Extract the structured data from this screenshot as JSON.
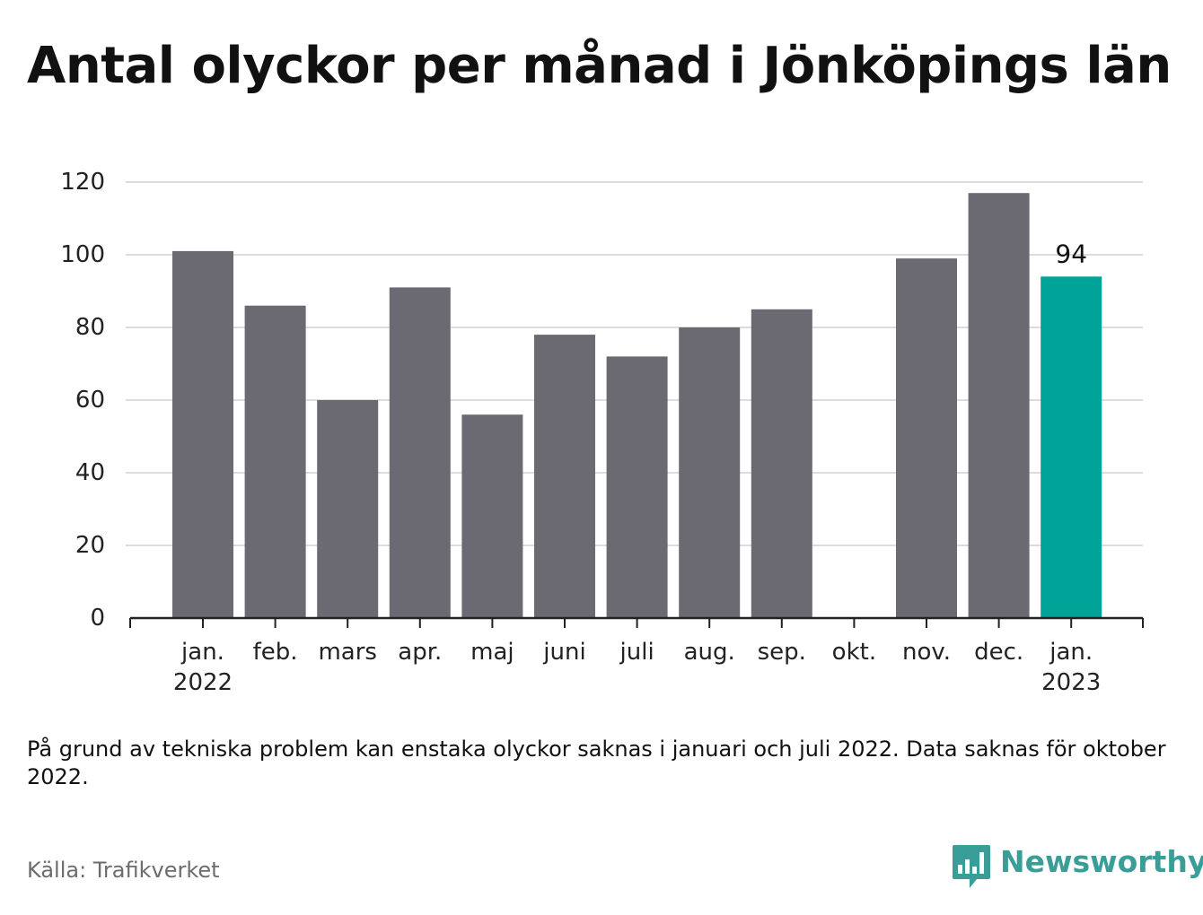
{
  "title": "Antal olyckor per månad i Jönköpings län",
  "note": "På grund av tekniska problem kan enstaka olyckor saknas i januari och juli 2022. Data saknas för oktober 2022.",
  "source": "Källa: Trafikverket",
  "brand": {
    "name": "Newsworthy",
    "icon": "bar-chart-speech-bubble-icon",
    "color": "#3a9e98"
  },
  "chart_data": {
    "type": "bar",
    "title": "Antal olyckor per månad i Jönköpings län",
    "xlabel": "",
    "ylabel": "",
    "categories": [
      "jan. 2022",
      "feb.",
      "mars",
      "apr.",
      "maj",
      "juni",
      "juli",
      "aug.",
      "sep.",
      "okt.",
      "nov.",
      "dec.",
      "jan. 2023"
    ],
    "tick_labels": [
      [
        "jan.",
        "2022"
      ],
      [
        "feb."
      ],
      [
        "mars"
      ],
      [
        "apr."
      ],
      [
        "maj"
      ],
      [
        "juni"
      ],
      [
        "juli"
      ],
      [
        "aug."
      ],
      [
        "sep."
      ],
      [
        "okt."
      ],
      [
        "nov."
      ],
      [
        "dec."
      ],
      [
        "jan.",
        "2023"
      ]
    ],
    "values": [
      101,
      86,
      60,
      91,
      56,
      78,
      72,
      80,
      85,
      null,
      99,
      117,
      94
    ],
    "ylim": [
      0,
      120
    ],
    "yticks": [
      0,
      20,
      40,
      60,
      80,
      100,
      120
    ],
    "grid": true,
    "highlight_index": 12,
    "data_labels": [
      {
        "index": 12,
        "text": "94"
      }
    ],
    "colors": {
      "bar": "#6b6a72",
      "highlight": "#00a398",
      "grid": "#dcdcdc",
      "axis": "#222222",
      "tick_text": "#222222"
    }
  }
}
